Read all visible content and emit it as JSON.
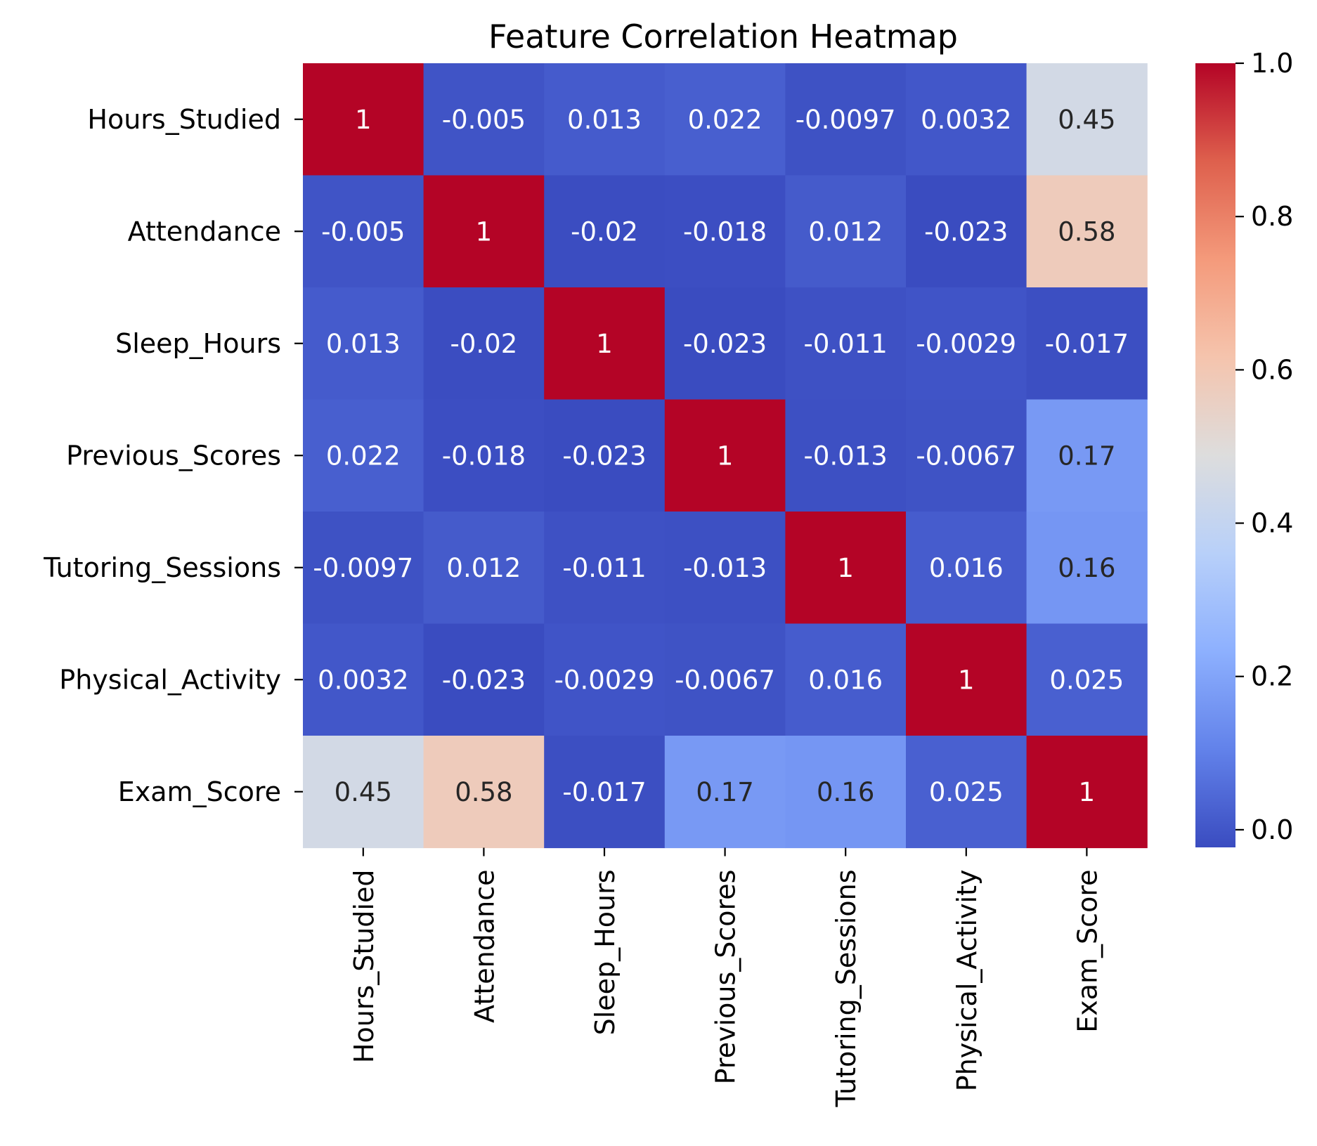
{
  "chart_data": {
    "type": "heatmap",
    "title": "Feature Correlation Heatmap",
    "rows": [
      "Hours_Studied",
      "Attendance",
      "Sleep_Hours",
      "Previous_Scores",
      "Tutoring_Sessions",
      "Physical_Activity",
      "Exam_Score"
    ],
    "columns": [
      "Hours_Studied",
      "Attendance",
      "Sleep_Hours",
      "Previous_Scores",
      "Tutoring_Sessions",
      "Physical_Activity",
      "Exam_Score"
    ],
    "values": [
      [
        1,
        -0.005,
        0.013,
        0.022,
        -0.0097,
        0.0032,
        0.45
      ],
      [
        -0.005,
        1,
        -0.02,
        -0.018,
        0.012,
        -0.023,
        0.58
      ],
      [
        0.013,
        -0.02,
        1,
        -0.023,
        -0.011,
        -0.0029,
        -0.017
      ],
      [
        0.022,
        -0.018,
        -0.023,
        1,
        -0.013,
        -0.0067,
        0.17
      ],
      [
        -0.0097,
        0.012,
        -0.011,
        -0.013,
        1,
        0.016,
        0.16
      ],
      [
        0.0032,
        -0.023,
        -0.0029,
        -0.0067,
        0.016,
        1,
        0.025
      ],
      [
        0.45,
        0.58,
        -0.017,
        0.17,
        0.16,
        0.025,
        1
      ]
    ],
    "annotations": [
      [
        "1",
        "-0.005",
        "0.013",
        "0.022",
        "-0.0097",
        "0.0032",
        "0.45"
      ],
      [
        "-0.005",
        "1",
        "-0.02",
        "-0.018",
        "0.012",
        "-0.023",
        "0.58"
      ],
      [
        "0.013",
        "-0.02",
        "1",
        "-0.023",
        "-0.011",
        "-0.0029",
        "-0.017"
      ],
      [
        "0.022",
        "-0.018",
        "-0.023",
        "1",
        "-0.013",
        "-0.0067",
        "0.17"
      ],
      [
        "-0.0097",
        "0.012",
        "-0.011",
        "-0.013",
        "1",
        "0.016",
        "0.16"
      ],
      [
        "0.0032",
        "-0.023",
        "-0.0029",
        "-0.0067",
        "0.016",
        "1",
        "0.025"
      ],
      [
        "0.45",
        "0.58",
        "-0.017",
        "0.17",
        "0.16",
        "0.025",
        "1"
      ]
    ],
    "colormap": "coolwarm",
    "vmin": -0.023,
    "vmax": 1,
    "colorbar_ticks": [
      "0.0",
      "0.2",
      "0.4",
      "0.6",
      "0.8",
      "1.0"
    ],
    "colorbar_tick_values": [
      0.0,
      0.2,
      0.4,
      0.6,
      0.8,
      1.0
    ],
    "colorbar_placement": "right",
    "annotation_colors": {
      "light": "#ffffff",
      "dark": "#262626"
    }
  }
}
